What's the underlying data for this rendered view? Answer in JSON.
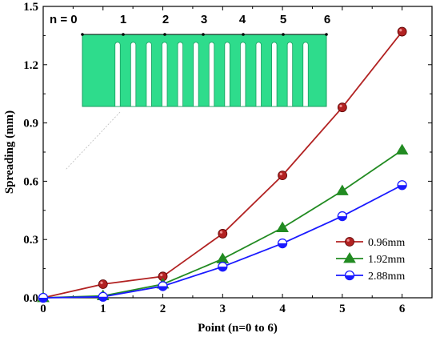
{
  "chart_data": {
    "type": "line",
    "xlabel": "Point (n=0 to 6)",
    "ylabel": "Spreading (mm)",
    "x": [
      0,
      1,
      2,
      3,
      4,
      5,
      6
    ],
    "xlim": [
      0,
      6.5
    ],
    "ylim": [
      0,
      1.5
    ],
    "x_ticks": [
      "0",
      "1",
      "2",
      "3",
      "4",
      "5",
      "6"
    ],
    "y_ticks": [
      "0.0",
      "0.3",
      "0.6",
      "0.9",
      "1.2",
      "1.5"
    ],
    "y_tick_values": [
      0,
      0.3,
      0.6,
      0.9,
      1.2,
      1.5
    ],
    "grid": false,
    "legend_position": "bottom-right",
    "series": [
      {
        "name": "0.96mm",
        "color": "#b22222",
        "marker": "circle",
        "values": [
          0.0,
          0.07,
          0.11,
          0.33,
          0.63,
          0.98,
          1.37
        ]
      },
      {
        "name": "1.92mm",
        "color": "#228b22",
        "marker": "triangle",
        "values": [
          0.0,
          0.01,
          0.07,
          0.2,
          0.36,
          0.55,
          0.76
        ]
      },
      {
        "name": "2.88mm",
        "color": "#1a1aff",
        "marker": "half-circle",
        "values": [
          0.0,
          0.005,
          0.06,
          0.16,
          0.28,
          0.42,
          0.58
        ]
      }
    ],
    "inset": {
      "prefix": "n = 0",
      "labels": [
        "1",
        "2",
        "3",
        "4",
        "5",
        "6"
      ],
      "color": "#2edc8c"
    }
  }
}
